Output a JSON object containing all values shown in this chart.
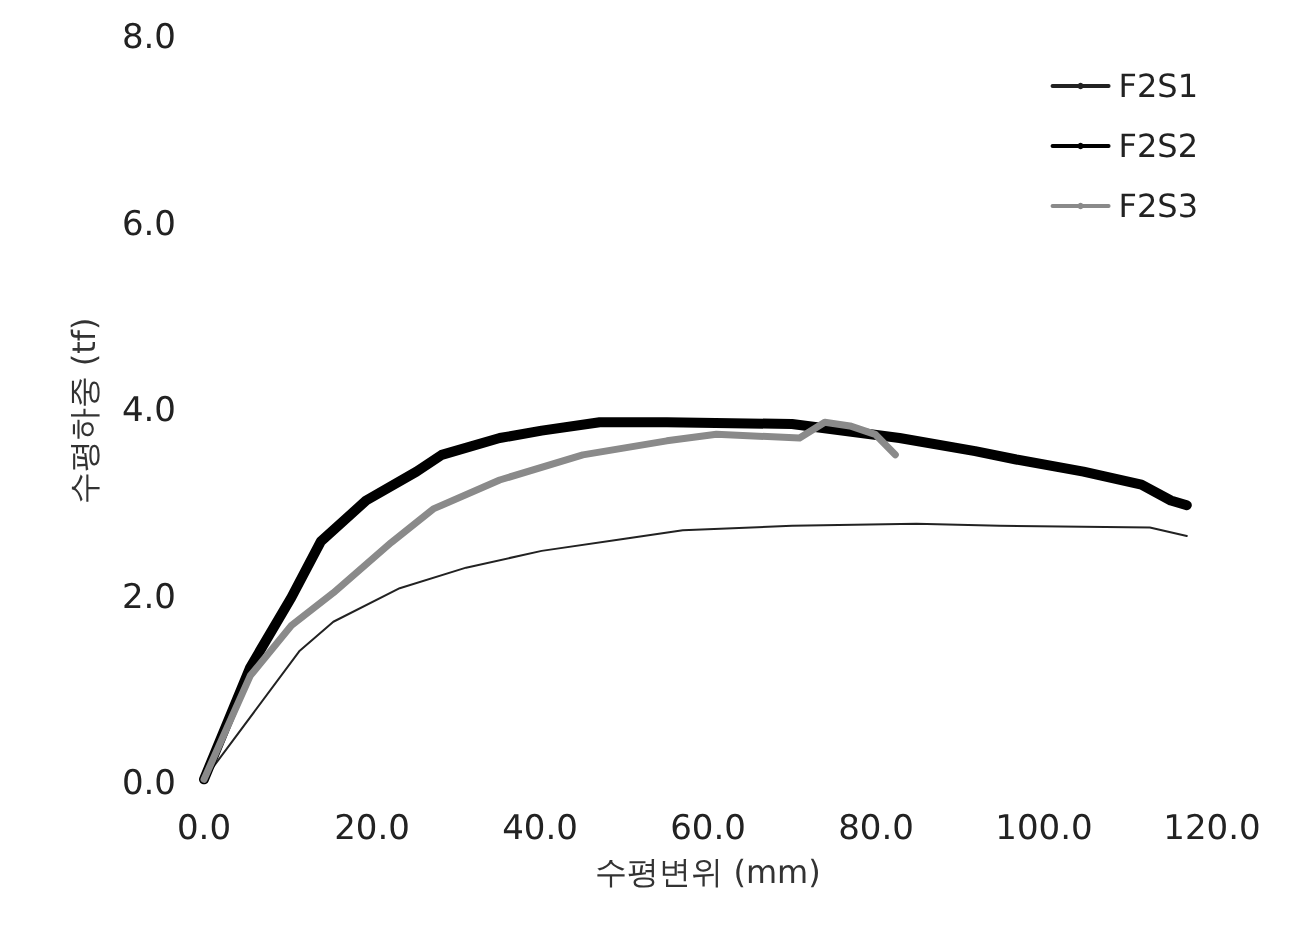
{
  "chart_data": {
    "type": "line",
    "xlabel": "수평변위 (mm)",
    "ylabel": "수평하중 (tf)",
    "xlim": [
      0,
      120
    ],
    "ylim": [
      0,
      8
    ],
    "xticks": [
      {
        "value": 0,
        "label": "0.0"
      },
      {
        "value": 20,
        "label": "20.0"
      },
      {
        "value": 40,
        "label": "40.0"
      },
      {
        "value": 60,
        "label": "60.0"
      },
      {
        "value": 80,
        "label": "80.0"
      },
      {
        "value": 100,
        "label": "100.0"
      },
      {
        "value": 120,
        "label": "120.0"
      }
    ],
    "yticks": [
      {
        "value": 0,
        "label": "0.0"
      },
      {
        "value": 2,
        "label": "2.0"
      },
      {
        "value": 4,
        "label": "4.0"
      },
      {
        "value": 6,
        "label": "6.0"
      },
      {
        "value": 8,
        "label": "8.0"
      }
    ],
    "grid": false,
    "legend": "top right",
    "marker": "none",
    "line_style": "solid",
    "series": [
      {
        "name": "F2S1",
        "color": "#222222",
        "x": [
          0,
          11.4,
          15.4,
          23.3,
          31.2,
          40.2,
          50.1,
          57,
          70,
          84.8,
          94.7,
          112.6,
          117
        ],
        "values": [
          0.05,
          1.43,
          1.74,
          2.1,
          2.32,
          2.5,
          2.63,
          2.72,
          2.77,
          2.79,
          2.77,
          2.75,
          2.66
        ]
      },
      {
        "name": "F2S2",
        "color": "#000000",
        "x": [
          0,
          5.5,
          10.4,
          13.9,
          19.3,
          25.3,
          28.3,
          35.2,
          40.2,
          47.1,
          55.1,
          70,
          82.8,
          91.8,
          96.7,
          104.7,
          111.6,
          115.1,
          117
        ],
        "values": [
          0.05,
          1.25,
          2.0,
          2.6,
          3.04,
          3.35,
          3.53,
          3.71,
          3.79,
          3.88,
          3.88,
          3.86,
          3.71,
          3.57,
          3.48,
          3.35,
          3.21,
          3.04,
          2.99
        ]
      },
      {
        "name": "F2S3",
        "color": "#8a8a8a",
        "x": [
          0,
          5.5,
          10.4,
          15.4,
          22.3,
          27.3,
          35.2,
          45.1,
          55.1,
          61,
          70.9,
          73.9,
          76.9,
          79.9,
          82.3
        ],
        "values": [
          0.05,
          1.16,
          1.7,
          2.05,
          2.59,
          2.95,
          3.26,
          3.53,
          3.68,
          3.75,
          3.71,
          3.88,
          3.84,
          3.75,
          3.53
        ]
      }
    ]
  }
}
